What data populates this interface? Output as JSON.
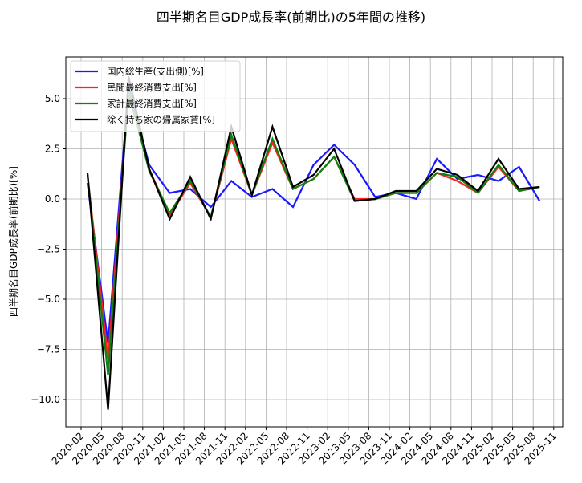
{
  "chart_data": {
    "type": "line",
    "title": "四半期名目GDP成長率(前期比)の5年間の推移)",
    "xlabel": "",
    "ylabel": "四半期名目GDP成長率(前期比)[%]",
    "ylim": [
      -11.3,
      7.1
    ],
    "yticks": [
      5.0,
      2.5,
      0.0,
      -2.5,
      -5.0,
      -7.5,
      -10.0
    ],
    "ytick_labels": [
      "5.0",
      "2.5",
      "0.0",
      "−2.5",
      "−5.0",
      "−7.5",
      "−10.0"
    ],
    "xtick_labels": [
      "2020-02",
      "2020-05",
      "2020-08",
      "2020-11",
      "2021-02",
      "2021-05",
      "2021-08",
      "2021-11",
      "2022-02",
      "2022-05",
      "2022-08",
      "2022-11",
      "2023-02",
      "2023-05",
      "2023-08",
      "2023-11",
      "2024-02",
      "2024-05",
      "2024-08",
      "2024-11",
      "2025-02",
      "2025-05",
      "2025-08",
      "2025-11"
    ],
    "grid": true,
    "legend_position": "upper left",
    "x": [
      "2020-Q1",
      "2020-Q2",
      "2020-Q3",
      "2020-Q4",
      "2021-Q1",
      "2021-Q2",
      "2021-Q3",
      "2021-Q4",
      "2022-Q1",
      "2022-Q2",
      "2022-Q3",
      "2022-Q4",
      "2023-Q1",
      "2023-Q2",
      "2023-Q3",
      "2023-Q4",
      "2024-Q1",
      "2024-Q2",
      "2024-Q3",
      "2024-Q4",
      "2025-Q1",
      "2025-Q2",
      "2025-Q3"
    ],
    "series": [
      {
        "name": "国内総生産(支出側)[%]",
        "color": "#1a1aff",
        "values": [
          0.8,
          -7.2,
          5.6,
          1.7,
          0.3,
          0.5,
          -0.4,
          0.9,
          0.1,
          0.5,
          -0.4,
          1.7,
          2.7,
          1.7,
          0.1,
          0.3,
          0.0,
          2.0,
          1.0,
          1.2,
          0.9,
          1.6,
          -0.1
        ]
      },
      {
        "name": "民間最終消費支出[%]",
        "color": "#ff2020",
        "values": [
          1.2,
          -8.0,
          5.3,
          1.5,
          -0.8,
          0.8,
          -0.9,
          3.0,
          0.2,
          2.8,
          0.5,
          1.0,
          2.1,
          0.0,
          0.0,
          0.3,
          0.3,
          1.3,
          0.9,
          0.3,
          1.6,
          0.4,
          0.6
        ]
      },
      {
        "name": "家計最終消費支出[%]",
        "color": "#108010",
        "values": [
          1.2,
          -8.8,
          5.4,
          1.4,
          -0.7,
          0.9,
          -0.9,
          3.2,
          0.2,
          3.0,
          0.5,
          1.0,
          2.1,
          -0.1,
          0.0,
          0.3,
          0.3,
          1.3,
          1.1,
          0.3,
          1.7,
          0.4,
          0.6
        ]
      },
      {
        "name": "除く持ち家の帰属家賃[%]",
        "color": "#000000",
        "values": [
          1.3,
          -10.5,
          6.1,
          1.5,
          -1.0,
          1.1,
          -1.0,
          3.6,
          0.2,
          3.6,
          0.6,
          1.2,
          2.5,
          -0.1,
          0.0,
          0.4,
          0.4,
          1.5,
          1.2,
          0.4,
          2.0,
          0.5,
          0.6
        ]
      }
    ]
  }
}
